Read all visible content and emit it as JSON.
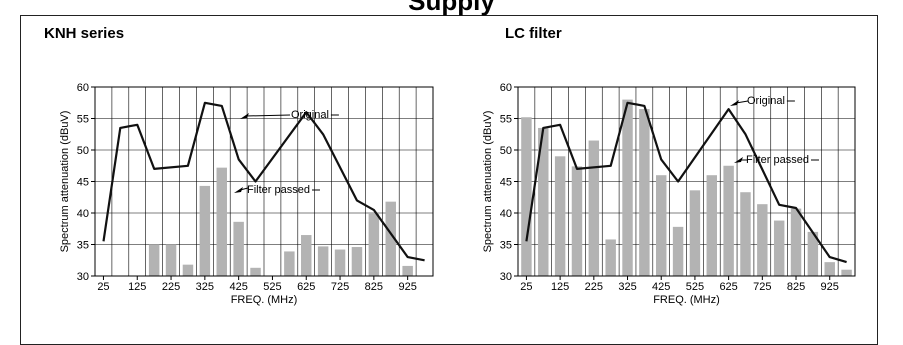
{
  "page": {
    "title": "Supply"
  },
  "colors": {
    "bar": "#b3b3b3",
    "line": "#111111",
    "grid": "#000000"
  },
  "chart_data": [
    {
      "type": "bar",
      "title": "KNH series",
      "xlabel": "FREQ. (MHz)",
      "ylabel": "Spectrum attenuation (dBuV)",
      "xlim": [
        0,
        1000
      ],
      "ylim": [
        30,
        60
      ],
      "xticks": [
        25,
        125,
        225,
        325,
        425,
        525,
        625,
        725,
        825,
        925
      ],
      "yticks": [
        30,
        35,
        40,
        45,
        50,
        55,
        60
      ],
      "grid": true,
      "series": [
        {
          "name": "Original",
          "kind": "line",
          "x": [
            25,
            75,
            125,
            175,
            275,
            325,
            375,
            425,
            475,
            625,
            675,
            775,
            825,
            925,
            975
          ],
          "y": [
            35.5,
            53.5,
            54,
            47,
            47.5,
            57.5,
            57,
            48.5,
            45,
            56,
            52.5,
            42,
            40.5,
            33,
            32.5
          ]
        },
        {
          "name": "Filter passed",
          "kind": "bar",
          "x": [
            175,
            225,
            275,
            325,
            375,
            425,
            475,
            575,
            625,
            675,
            725,
            775,
            825,
            875,
            925
          ],
          "y": [
            35,
            35,
            31.8,
            44.3,
            47.2,
            38.6,
            31.3,
            33.9,
            36.5,
            34.7,
            34.2,
            34.6,
            40,
            41.8,
            31.6
          ]
        }
      ],
      "annotations": [
        "Original",
        "Filter passed"
      ]
    },
    {
      "type": "bar",
      "title": "LC filter",
      "xlabel": "FREQ. (MHz)",
      "ylabel": "Spectrum attenuation (dBuV)",
      "xlim": [
        0,
        1000
      ],
      "ylim": [
        30,
        60
      ],
      "xticks": [
        25,
        125,
        225,
        325,
        425,
        525,
        625,
        725,
        825,
        925
      ],
      "yticks": [
        30,
        35,
        40,
        45,
        50,
        55,
        60
      ],
      "grid": true,
      "series": [
        {
          "name": "Original",
          "kind": "line",
          "x": [
            25,
            75,
            125,
            175,
            275,
            325,
            375,
            425,
            475,
            625,
            675,
            775,
            825,
            925,
            975
          ],
          "y": [
            35.5,
            53.5,
            54,
            47,
            47.5,
            57.5,
            57,
            48.5,
            45,
            56.5,
            52.5,
            41.3,
            40.8,
            33,
            32.2
          ]
        },
        {
          "name": "Filter passed",
          "kind": "bar",
          "x": [
            25,
            75,
            125,
            175,
            225,
            275,
            325,
            375,
            425,
            475,
            525,
            575,
            625,
            675,
            725,
            775,
            825,
            875,
            925,
            975
          ],
          "y": [
            55.2,
            53.5,
            49,
            47.4,
            51.5,
            35.8,
            58,
            56.5,
            46,
            37.8,
            43.6,
            46,
            47.5,
            43.3,
            41.4,
            38.8,
            40.7,
            37,
            32.2,
            31
          ]
        }
      ],
      "annotations": [
        "Original",
        "Filter passed"
      ]
    }
  ]
}
